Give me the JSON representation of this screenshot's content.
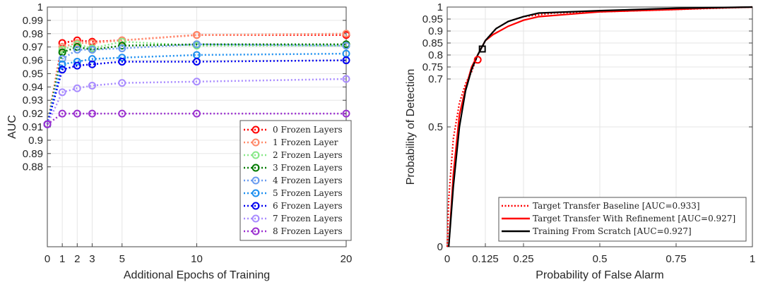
{
  "chart_data": [
    {
      "type": "line",
      "xlabel": "Additional Epochs of Training",
      "ylabel": "AUC",
      "xlim": [
        0,
        20
      ],
      "ylim": [
        0.82,
        1
      ],
      "xticks": [
        0,
        1,
        2,
        3,
        5,
        10,
        20
      ],
      "yticks": [
        0.88,
        0.89,
        0.9,
        0.91,
        0.92,
        0.93,
        0.94,
        0.95,
        0.96,
        0.97,
        0.98,
        0.99,
        1
      ],
      "grid": true,
      "legend_position": "bottom-right",
      "x": [
        0,
        1,
        2,
        3,
        5,
        10,
        20
      ],
      "series": [
        {
          "name": "0 Frozen Layers",
          "color": "#ff0000",
          "values": [
            0.912,
            0.973,
            0.975,
            0.974,
            0.975,
            0.979,
            0.979
          ]
        },
        {
          "name": "1 Frozen Layer",
          "color": "#ff8a6a",
          "values": [
            0.912,
            0.97,
            0.973,
            0.973,
            0.975,
            0.979,
            0.98
          ]
        },
        {
          "name": "2 Frozen Layers",
          "color": "#88e888",
          "values": [
            0.912,
            0.968,
            0.972,
            0.969,
            0.974,
            0.971,
            0.971
          ]
        },
        {
          "name": "3 Frozen Layers",
          "color": "#007a00",
          "values": [
            0.912,
            0.966,
            0.97,
            0.968,
            0.971,
            0.972,
            0.972
          ]
        },
        {
          "name": "4 Frozen Layers",
          "color": "#6a9cf0",
          "values": [
            0.912,
            0.961,
            0.968,
            0.968,
            0.969,
            0.972,
            0.971
          ]
        },
        {
          "name": "5 Frozen Layers",
          "color": "#1e90f0",
          "values": [
            0.912,
            0.957,
            0.959,
            0.961,
            0.962,
            0.964,
            0.965
          ]
        },
        {
          "name": "6 Frozen Layers",
          "color": "#0000f0",
          "values": [
            0.912,
            0.953,
            0.956,
            0.957,
            0.959,
            0.959,
            0.96
          ]
        },
        {
          "name": "7 Frozen Layers",
          "color": "#a98cff",
          "values": [
            0.912,
            0.936,
            0.939,
            0.941,
            0.943,
            0.944,
            0.946
          ]
        },
        {
          "name": "8 Frozen Layers",
          "color": "#9b30d0",
          "values": [
            0.912,
            0.92,
            0.92,
            0.92,
            0.92,
            0.92,
            0.92
          ]
        }
      ]
    },
    {
      "type": "line",
      "xlabel": "Probability of False Alarm",
      "ylabel": "Probability of Detection",
      "xlim": [
        0,
        1
      ],
      "ylim": [
        0,
        1
      ],
      "xticks": [
        0,
        0.125,
        0.25,
        0.5,
        0.75,
        1
      ],
      "yticks": [
        0,
        0.5,
        0.7,
        0.75,
        0.8,
        0.85,
        0.9,
        0.95,
        1
      ],
      "grid": true,
      "legend_position": "bottom-right",
      "series": [
        {
          "name": "Target Transfer Baseline [AUC=0.933]",
          "color": "#ff0000",
          "style": "dotted",
          "points": [
            [
              0,
              0
            ],
            [
              0.005,
              0.2
            ],
            [
              0.02,
              0.45
            ],
            [
              0.04,
              0.6
            ],
            [
              0.06,
              0.68
            ],
            [
              0.08,
              0.73
            ],
            [
              0.1,
              0.8
            ],
            [
              0.125,
              0.86
            ],
            [
              0.16,
              0.91
            ],
            [
              0.2,
              0.94
            ],
            [
              0.25,
              0.96
            ],
            [
              0.35,
              0.975
            ],
            [
              0.5,
              0.98
            ],
            [
              0.75,
              0.99
            ],
            [
              1,
              1
            ]
          ],
          "marker": {
            "shape": "circle",
            "point": [
              0.1,
              0.78
            ]
          }
        },
        {
          "name": "Target Transfer With Refinement [AUC=0.927]",
          "color": "#ff0000",
          "style": "solid",
          "points": [
            [
              0.005,
              0
            ],
            [
              0.02,
              0.3
            ],
            [
              0.04,
              0.55
            ],
            [
              0.06,
              0.66
            ],
            [
              0.08,
              0.75
            ],
            [
              0.1,
              0.8
            ],
            [
              0.125,
              0.86
            ],
            [
              0.15,
              0.885
            ],
            [
              0.2,
              0.92
            ],
            [
              0.25,
              0.945
            ],
            [
              0.3,
              0.96
            ],
            [
              0.4,
              0.97
            ],
            [
              0.5,
              0.98
            ],
            [
              0.75,
              0.99
            ],
            [
              0.85,
              0.995
            ],
            [
              1,
              1
            ]
          ]
        },
        {
          "name": "Training From Scratch [AUC=0.927]",
          "color": "#000000",
          "style": "solid",
          "points": [
            [
              0.005,
              0
            ],
            [
              0.02,
              0.25
            ],
            [
              0.04,
              0.5
            ],
            [
              0.06,
              0.65
            ],
            [
              0.08,
              0.74
            ],
            [
              0.1,
              0.8
            ],
            [
              0.125,
              0.86
            ],
            [
              0.16,
              0.91
            ],
            [
              0.2,
              0.94
            ],
            [
              0.25,
              0.96
            ],
            [
              0.3,
              0.975
            ],
            [
              0.5,
              0.985
            ],
            [
              0.75,
              0.995
            ],
            [
              1,
              1
            ]
          ],
          "marker": {
            "shape": "square",
            "point": [
              0.115,
              0.825
            ]
          }
        }
      ]
    }
  ]
}
